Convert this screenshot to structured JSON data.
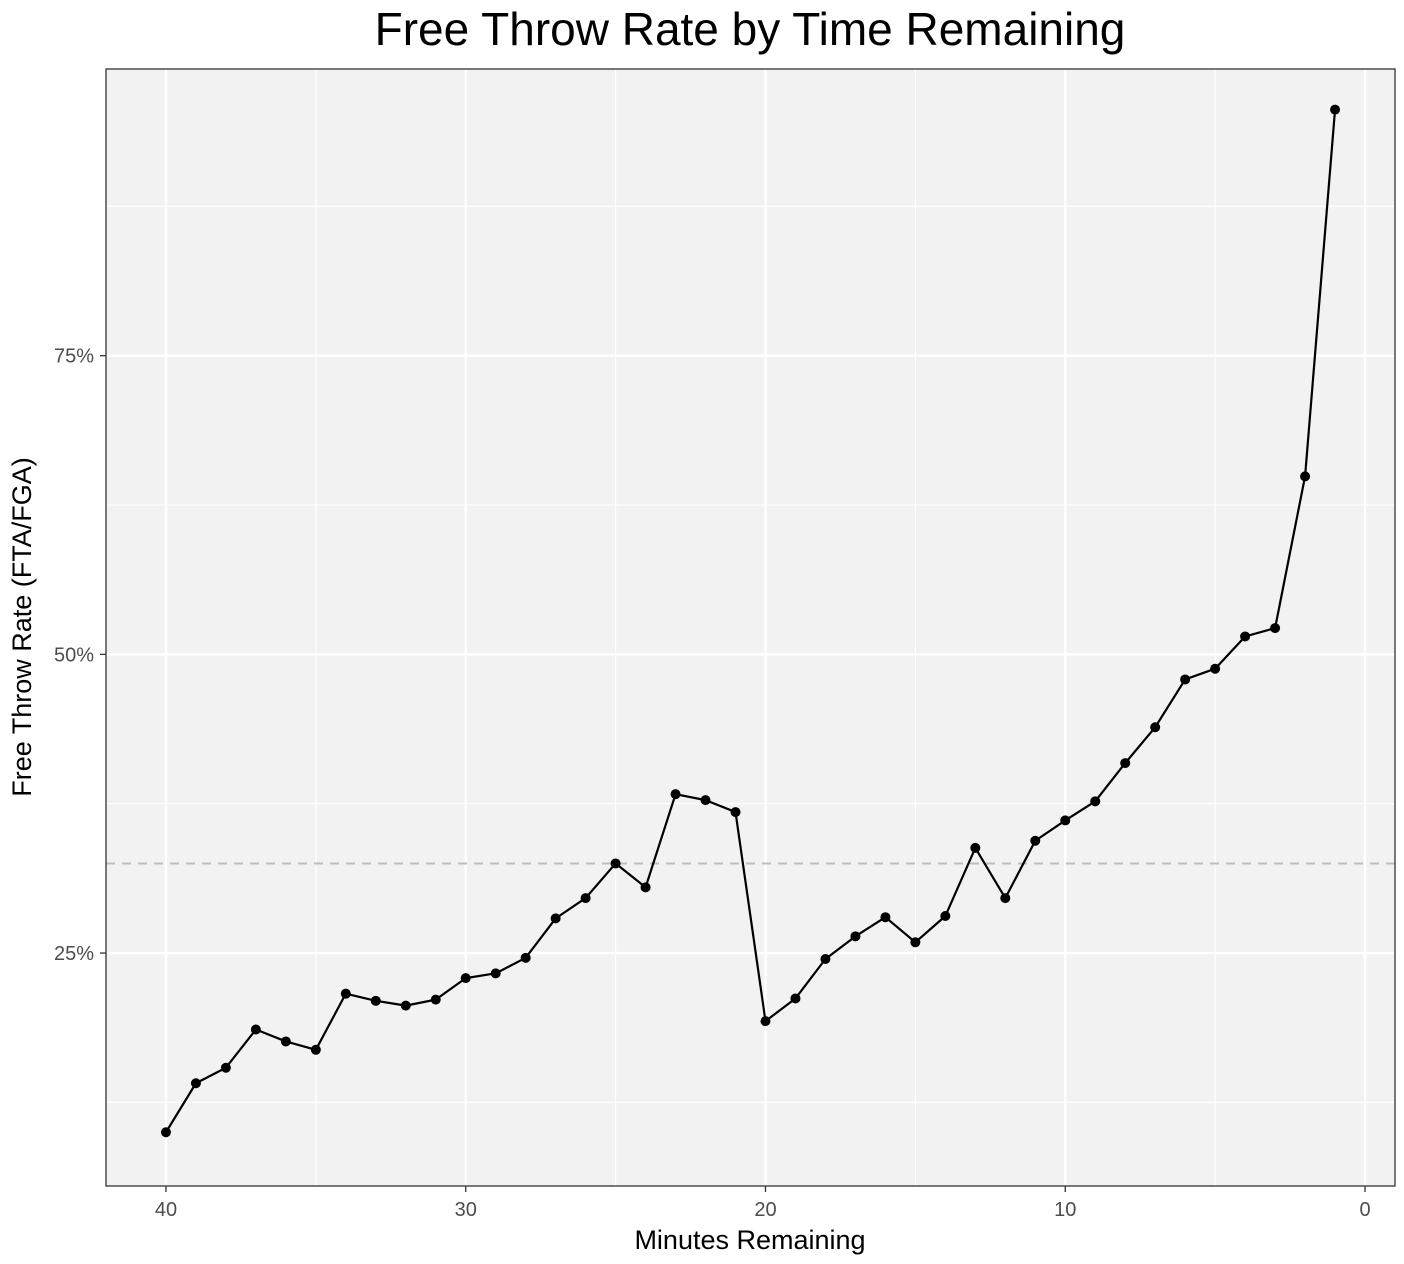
{
  "chart_data": {
    "type": "line",
    "title": "Free Throw Rate by Time Remaining",
    "xlabel": "Minutes Remaining",
    "ylabel": "Free Throw Rate (FTA/FGA)",
    "x_reversed": true,
    "xlim": [
      42,
      -1
    ],
    "ylim": [
      0.055,
      0.99
    ],
    "x_ticks": [
      40,
      30,
      20,
      10,
      0
    ],
    "x_minor_ticks": [
      35,
      25,
      15,
      5
    ],
    "y_ticks": [
      0.25,
      0.5,
      0.75
    ],
    "y_tick_labels": [
      "25%",
      "50%",
      "75%"
    ],
    "y_minor_ticks": [
      0.125,
      0.375,
      0.625,
      0.875
    ],
    "grid": true,
    "reference_line": {
      "y": 0.325,
      "style": "dashed",
      "color": "#bdbdbd"
    },
    "colors": {
      "panel": "#f2f2f2",
      "grid": "#ffffff",
      "line": "#000000",
      "point": "#000000"
    },
    "series": [
      {
        "x": [
          40,
          39,
          38,
          37,
          36,
          35,
          34,
          33,
          32,
          31,
          30,
          29,
          28,
          27,
          26,
          25,
          24,
          23,
          22,
          21,
          20,
          19,
          18,
          17,
          16,
          15,
          14,
          13,
          12,
          11,
          10,
          9,
          8,
          7,
          6,
          5,
          4,
          3,
          2,
          1
        ],
        "values": [
          0.1,
          0.141,
          0.154,
          0.186,
          0.176,
          0.169,
          0.216,
          0.21,
          0.206,
          0.211,
          0.229,
          0.233,
          0.246,
          0.279,
          0.296,
          0.325,
          0.305,
          0.383,
          0.378,
          0.368,
          0.193,
          0.212,
          0.245,
          0.264,
          0.28,
          0.259,
          0.281,
          0.338,
          0.296,
          0.344,
          0.361,
          0.377,
          0.409,
          0.439,
          0.479,
          0.488,
          0.515,
          0.522,
          0.649,
          0.956
        ]
      }
    ]
  }
}
